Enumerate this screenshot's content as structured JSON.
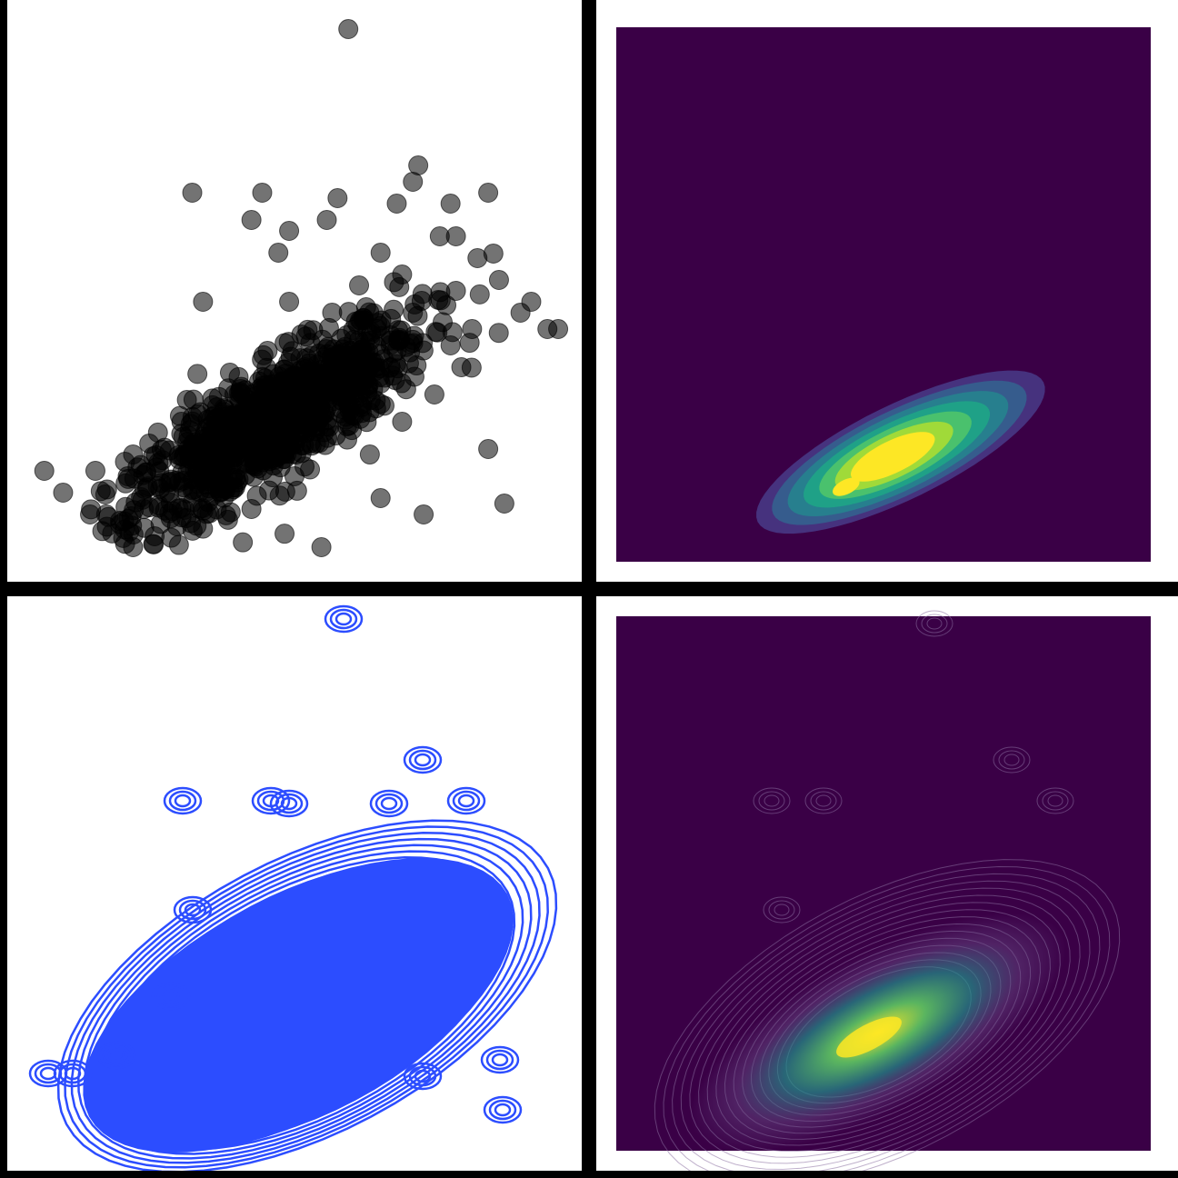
{
  "colors": {
    "scatter": "#000000",
    "contour_lines": "#2c4dff",
    "viridis": [
      "#440154",
      "#3b528b",
      "#21918c",
      "#5ec962",
      "#fde725"
    ],
    "background": "#ffffff",
    "dark_bg": "#3a0046"
  },
  "chart_data": [
    {
      "type": "scatter",
      "title": "",
      "xlabel": "",
      "ylabel": "",
      "grid": false,
      "xlim": [
        0,
        10
      ],
      "ylim": [
        0,
        10
      ],
      "marker_alpha": 0.55,
      "points": [
        [
          6.0,
          9.8
        ],
        [
          7.3,
          7.3
        ],
        [
          7.2,
          7.0
        ],
        [
          3.1,
          6.8
        ],
        [
          4.4,
          6.8
        ],
        [
          8.6,
          6.8
        ],
        [
          5.8,
          6.7
        ],
        [
          6.9,
          6.6
        ],
        [
          7.9,
          6.6
        ],
        [
          4.2,
          6.3
        ],
        [
          5.6,
          6.3
        ],
        [
          4.9,
          6.1
        ],
        [
          7.7,
          6.0
        ],
        [
          8.0,
          6.0
        ],
        [
          4.7,
          5.7
        ],
        [
          6.6,
          5.7
        ],
        [
          8.4,
          5.6
        ],
        [
          8.8,
          5.2
        ],
        [
          3.3,
          4.8
        ],
        [
          9.4,
          4.8
        ],
        [
          9.7,
          4.3
        ],
        [
          9.9,
          4.3
        ],
        [
          0.35,
          1.7
        ],
        [
          0.7,
          1.3
        ],
        [
          1.3,
          1.7
        ],
        [
          1.2,
          0.9
        ],
        [
          1.5,
          0.9
        ],
        [
          2.0,
          0.3
        ],
        [
          2.4,
          0.5
        ],
        [
          8.9,
          1.1
        ],
        [
          7.4,
          0.9
        ],
        [
          6.6,
          1.2
        ],
        [
          5.5,
          0.3
        ],
        [
          8.6,
          2.1
        ],
        [
          2.0,
          2.0
        ],
        [
          2.9,
          2.6
        ],
        [
          7.0,
          2.6
        ],
        [
          2.3,
          2.2
        ],
        [
          3.0,
          3.0
        ],
        [
          1.9,
          1.6
        ],
        [
          6.4,
          2.0
        ],
        [
          4.0,
          3.2
        ],
        [
          5.2,
          3.6
        ],
        [
          6.1,
          4.1
        ],
        [
          4.6,
          2.6
        ],
        [
          3.7,
          1.4
        ],
        [
          5.0,
          1.6
        ],
        [
          8.1,
          3.6
        ],
        [
          7.6,
          3.1
        ],
        [
          6.9,
          3.9
        ],
        [
          5.7,
          4.6
        ],
        [
          4.5,
          3.9
        ],
        [
          3.5,
          2.4
        ],
        [
          2.6,
          1.3
        ],
        [
          4.2,
          1.0
        ],
        [
          6.0,
          2.9
        ],
        [
          7.2,
          4.6
        ],
        [
          8.3,
          4.3
        ],
        [
          3.8,
          3.5
        ],
        [
          2.2,
          1.0
        ],
        [
          5.4,
          2.2
        ],
        [
          6.6,
          3.3
        ],
        [
          7.9,
          4.0
        ],
        [
          9.2,
          4.6
        ],
        [
          4.9,
          4.8
        ],
        [
          6.2,
          5.1
        ],
        [
          7.0,
          5.3
        ],
        [
          8.0,
          5.0
        ]
      ],
      "cloud_points": 900
    },
    {
      "type": "heatmap",
      "subtype": "filled-kde-contour",
      "title": "",
      "xlabel": "",
      "ylabel": "",
      "colormap": "viridis",
      "levels": 8,
      "peaks": [
        [
          4.3,
          1.4
        ],
        [
          5.4,
          1.9
        ]
      ],
      "xlim": [
        0,
        10
      ],
      "ylim": [
        0,
        10
      ]
    },
    {
      "type": "line",
      "subtype": "kde-contour-lines",
      "title": "",
      "xlabel": "",
      "ylabel": "",
      "color": "blue",
      "xlim": [
        0,
        10
      ],
      "ylim": [
        0,
        10
      ]
    },
    {
      "type": "heatmap",
      "subtype": "kde-contour-overlay",
      "title": "",
      "xlabel": "",
      "ylabel": "",
      "colormap": "viridis",
      "peaks": [
        [
          4.3,
          1.4
        ],
        [
          5.4,
          1.9
        ]
      ],
      "xlim": [
        0,
        10
      ],
      "ylim": [
        0,
        10
      ]
    }
  ]
}
